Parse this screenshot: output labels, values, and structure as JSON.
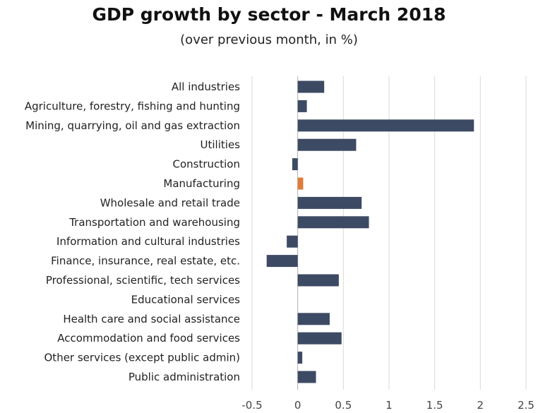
{
  "chart_data": {
    "type": "bar",
    "orientation": "horizontal",
    "title": "GDP growth by sector - March 2018",
    "subtitle": "(over previous month, in %)",
    "xlabel": "",
    "ylabel": "",
    "xlim": [
      -0.5,
      2.5
    ],
    "xticks": [
      "-0.5",
      "0",
      "0.5",
      "1",
      "1.5",
      "2",
      "2.5"
    ],
    "grid": "vertical",
    "legend": "none",
    "default_color": "#3d4a63",
    "categories": [
      "All industries",
      "Agriculture, forestry, fishing and hunting",
      "Mining, quarrying, oil and gas extraction",
      "Utilities",
      "Construction",
      "Manufacturing",
      "Wholesale and retail trade",
      "Transportation and warehousing",
      "Information and cultural industries",
      "Finance, insurance, real estate, etc.",
      "Professional, scientific, tech services",
      "Educational services",
      "Health care and social assistance",
      "Accommodation and food services",
      "Other services (except public admin)",
      "Public administration"
    ],
    "values": [
      0.29,
      0.1,
      1.93,
      0.64,
      -0.06,
      0.06,
      0.7,
      0.78,
      -0.12,
      -0.34,
      0.45,
      0.0,
      0.35,
      0.48,
      0.05,
      0.2
    ],
    "colors": [
      "#3d4a63",
      "#3d4a63",
      "#3d4a63",
      "#3d4a63",
      "#3d4a63",
      "#e07b39",
      "#3d4a63",
      "#3d4a63",
      "#3d4a63",
      "#3d4a63",
      "#3d4a63",
      "#3d4a63",
      "#3d4a63",
      "#3d4a63",
      "#3d4a63",
      "#3d4a63"
    ]
  }
}
